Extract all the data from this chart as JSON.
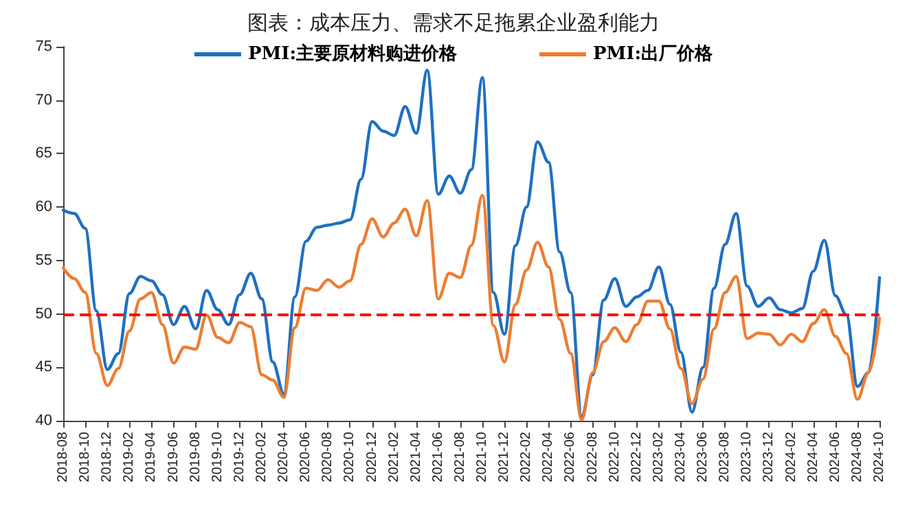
{
  "chart_data": {
    "type": "line",
    "title": "图表：成本压力、需求不足拖累企业盈利能力",
    "categories": [
      "2018-08",
      null,
      "2018-10",
      null,
      "2018-12",
      null,
      "2019-02",
      null,
      "2019-04",
      null,
      "2019-06",
      null,
      "2019-08",
      null,
      "2019-10",
      null,
      "2019-12",
      null,
      "2020-02",
      null,
      "2020-04",
      null,
      "2020-06",
      null,
      "2020-08",
      null,
      "2020-10",
      null,
      "2020-12",
      null,
      "2021-02",
      null,
      "2021-04",
      null,
      "2021-06",
      null,
      "2021-08",
      null,
      "2021-10",
      null,
      "2021-12",
      null,
      "2022-02",
      null,
      "2022-04",
      null,
      "2022-06",
      null,
      "2022-08",
      null,
      "2022-10",
      null,
      "2022-12",
      null,
      "2023-02",
      null,
      "2023-04",
      null,
      "2023-06",
      null,
      "2023-08",
      null,
      "2023-10",
      null,
      "2023-12",
      null,
      "2024-02",
      null,
      "2024-04",
      null,
      "2024-06",
      null,
      "2024-08",
      null,
      "2024-10"
    ],
    "series": [
      {
        "name": "PMI:主要原材料购进价格",
        "color": "#1f70c1",
        "values": [
          59.7,
          59.4,
          58.0,
          50.3,
          44.8,
          46.3,
          51.9,
          53.5,
          53.1,
          51.8,
          49.0,
          50.7,
          48.6,
          52.2,
          50.4,
          49.0,
          51.8,
          53.8,
          51.4,
          45.5,
          42.5,
          51.6,
          56.8,
          58.1,
          58.3,
          58.5,
          58.8,
          62.6,
          68.0,
          67.1,
          66.7,
          69.4,
          66.9,
          72.8,
          61.2,
          62.9,
          61.3,
          63.5,
          72.1,
          52.0,
          48.1,
          56.4,
          60.0,
          66.1,
          64.2,
          55.8,
          52.0,
          40.4,
          44.3,
          51.3,
          53.3,
          50.7,
          51.6,
          52.2,
          54.4,
          50.9,
          46.4,
          40.8,
          45.0,
          52.4,
          56.5,
          59.4,
          52.6,
          50.7,
          51.5,
          50.4,
          50.1,
          50.5,
          54.0,
          56.9,
          51.7,
          49.9,
          43.2,
          44.5,
          53.4
        ]
      },
      {
        "name": "PMI:出厂价格",
        "color": "#ed7d31",
        "values": [
          54.3,
          53.3,
          52.0,
          46.3,
          43.3,
          44.9,
          48.4,
          51.4,
          52.0,
          49.0,
          45.4,
          46.9,
          46.7,
          49.9,
          47.8,
          47.3,
          49.2,
          48.8,
          44.3,
          43.8,
          42.2,
          48.7,
          52.4,
          52.2,
          53.2,
          52.5,
          53.1,
          56.5,
          58.9,
          57.2,
          58.5,
          59.8,
          57.3,
          60.6,
          51.4,
          53.8,
          53.4,
          56.4,
          61.1,
          48.9,
          45.5,
          50.9,
          54.1,
          56.7,
          54.4,
          49.5,
          46.3,
          40.1,
          44.5,
          47.4,
          48.7,
          47.4,
          49.0,
          51.2,
          51.2,
          48.6,
          44.9,
          41.6,
          43.9,
          48.6,
          52.0,
          53.5,
          47.7,
          48.2,
          48.1,
          47.1,
          48.1,
          47.4,
          49.1,
          50.4,
          47.9,
          46.3,
          42.0,
          44.5,
          49.6
        ]
      }
    ],
    "ylim": [
      40,
      75
    ],
    "yticks": [
      40,
      45,
      50,
      55,
      60,
      65,
      70,
      75
    ],
    "ref_lines": [
      {
        "axis": "y",
        "value": 50,
        "color": "#ff0000",
        "line_style": "dashed"
      }
    ],
    "legend": "top",
    "grid": false,
    "marker": "none",
    "line_style": "solid"
  }
}
